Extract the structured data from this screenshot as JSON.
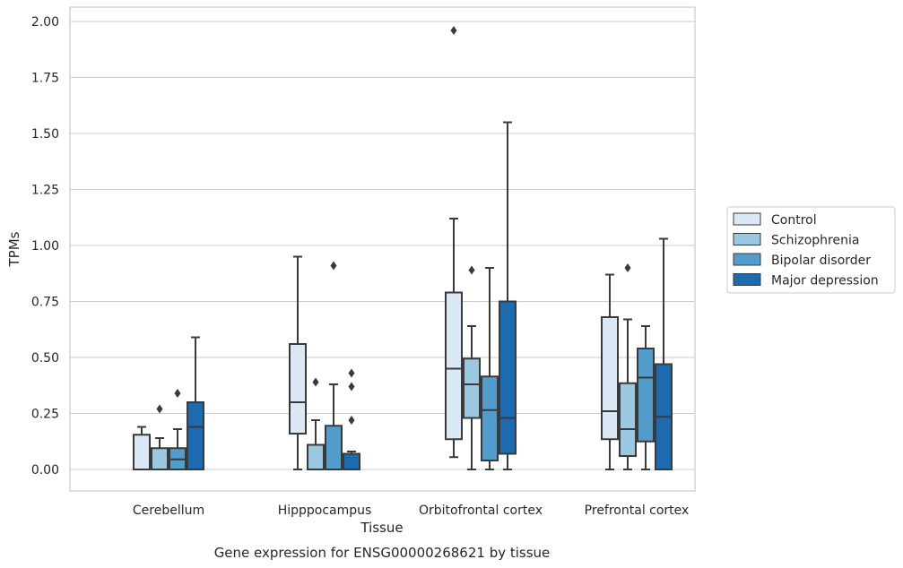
{
  "chart_data": {
    "type": "box",
    "title": "",
    "caption": "Gene expression for ENSG00000268621 by tissue",
    "xlabel": "Tissue",
    "ylabel": "TPMs",
    "ylim": [
      -0.1,
      2.06
    ],
    "yticks": [
      "0.00",
      "0.25",
      "0.50",
      "0.75",
      "1.00",
      "1.25",
      "1.50",
      "1.75",
      "2.00"
    ],
    "grid": "horizontal",
    "legend_position": "right",
    "categories": [
      "Cerebellum",
      "Hipppocampus",
      "Orbitofrontal cortex",
      "Prefrontal cortex"
    ],
    "series": [
      {
        "name": "Control",
        "color": "#dbe9f6",
        "boxes": [
          {
            "whislo": 0.0,
            "q1": 0.0,
            "med": 0.0,
            "q3": 0.155,
            "whishi": 0.19,
            "fliers": []
          },
          {
            "whislo": 0.0,
            "q1": 0.16,
            "med": 0.3,
            "q3": 0.56,
            "whishi": 0.95,
            "fliers": []
          },
          {
            "whislo": 0.055,
            "q1": 0.135,
            "med": 0.45,
            "q3": 0.79,
            "whishi": 1.12,
            "fliers": [
              1.96
            ]
          },
          {
            "whislo": 0.0,
            "q1": 0.135,
            "med": 0.26,
            "q3": 0.68,
            "whishi": 0.87,
            "fliers": []
          }
        ]
      },
      {
        "name": "Schizophrenia",
        "color": "#9ac8e0",
        "boxes": [
          {
            "whislo": 0.0,
            "q1": 0.0,
            "med": 0.0,
            "q3": 0.095,
            "whishi": 0.14,
            "fliers": [
              0.27
            ]
          },
          {
            "whislo": 0.0,
            "q1": 0.0,
            "med": 0.0,
            "q3": 0.11,
            "whishi": 0.22,
            "fliers": [
              0.39
            ]
          },
          {
            "whislo": 0.0,
            "q1": 0.23,
            "med": 0.38,
            "q3": 0.495,
            "whishi": 0.64,
            "fliers": [
              0.89
            ]
          },
          {
            "whislo": 0.0,
            "q1": 0.06,
            "med": 0.18,
            "q3": 0.385,
            "whishi": 0.67,
            "fliers": [
              0.9
            ]
          }
        ]
      },
      {
        "name": "Bipolar disorder",
        "color": "#529dcc",
        "boxes": [
          {
            "whislo": 0.0,
            "q1": 0.0,
            "med": 0.045,
            "q3": 0.095,
            "whishi": 0.18,
            "fliers": [
              0.34
            ]
          },
          {
            "whislo": 0.0,
            "q1": 0.0,
            "med": 0.0,
            "q3": 0.195,
            "whishi": 0.38,
            "fliers": [
              0.91
            ]
          },
          {
            "whislo": 0.0,
            "q1": 0.04,
            "med": 0.265,
            "q3": 0.415,
            "whishi": 0.9,
            "fliers": []
          },
          {
            "whislo": 0.0,
            "q1": 0.125,
            "med": 0.41,
            "q3": 0.54,
            "whishi": 0.64,
            "fliers": []
          }
        ]
      },
      {
        "name": "Major depression",
        "color": "#1c6aaf",
        "boxes": [
          {
            "whislo": 0.0,
            "q1": 0.0,
            "med": 0.19,
            "q3": 0.3,
            "whishi": 0.59,
            "fliers": []
          },
          {
            "whislo": 0.0,
            "q1": 0.0,
            "med": 0.0,
            "q3": 0.07,
            "whishi": 0.08,
            "fliers": [
              0.22,
              0.37,
              0.43
            ]
          },
          {
            "whislo": 0.0,
            "q1": 0.07,
            "med": 0.23,
            "q3": 0.75,
            "whishi": 1.55,
            "fliers": []
          },
          {
            "whislo": 0.0,
            "q1": 0.0,
            "med": 0.235,
            "q3": 0.47,
            "whishi": 1.03,
            "fliers": []
          }
        ]
      }
    ]
  }
}
